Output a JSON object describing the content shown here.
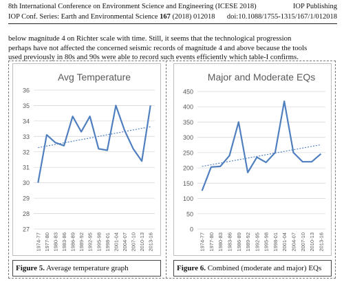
{
  "header": {
    "conference": "8th International Conference on Environment Science and Engineering (ICESE 2018)",
    "publisher": "IOP Publishing",
    "series": "IOP Conf. Series: Earth and Environmental Science",
    "volume": "167",
    "year_article": "(2018) 012018",
    "doi": "doi:10.1088/1755-1315/167/1/012018"
  },
  "paragraph": {
    "line1": "below magnitude 4 on Richter scale with time.  Still, it seems that the technological progression",
    "line2": "perhaps  have not affected the concerned seismic records of magnitude 4 and above because the tools",
    "line3": "used previously in 80s and 90s were able to record such events efficiently which table-I confirms."
  },
  "captions": {
    "fig5_label": "Figure 5.",
    "fig5_text": " Average temperature graph",
    "fig6_label": "Figure 6.",
    "fig6_text": " Combined (moderate and major) EQs"
  },
  "colors": {
    "line": "#4f7fbf",
    "trend": "#4f7fbf",
    "grid": "#d9d9d9",
    "tick_text": "#595959"
  },
  "chart_data": [
    {
      "type": "line",
      "title": "Avg Temperature",
      "categories": [
        "1974-77",
        "1977-80",
        "1980-83",
        "1983-86",
        "1986-89",
        "1989-92",
        "1992-95",
        "1995-98",
        "1998-01",
        "2001-04",
        "2004-07",
        "2007-10",
        "2010-13",
        "2013-16"
      ],
      "values": [
        30.0,
        33.1,
        32.6,
        32.4,
        34.3,
        33.3,
        34.3,
        32.2,
        32.1,
        35.0,
        33.4,
        32.2,
        31.4,
        35.0
      ],
      "trendline": true,
      "yticks": [
        27,
        28,
        29,
        30,
        31,
        32,
        33,
        34,
        35,
        36
      ],
      "ylim": [
        27,
        36
      ],
      "grid": true
    },
    {
      "type": "line",
      "title": "Major and Moderate EQs",
      "categories": [
        "1974-77",
        "1977-80",
        "1980-83",
        "1983-86",
        "1986-89",
        "1989-92",
        "1992-95",
        "1995-98",
        "1998-01",
        "2001-04",
        "2004-07",
        "2007-10",
        "2010-13",
        "2013-16"
      ],
      "values": [
        125,
        203,
        205,
        240,
        350,
        185,
        235,
        218,
        250,
        418,
        250,
        220,
        220,
        246
      ],
      "trendline": true,
      "yticks": [
        0,
        50,
        100,
        150,
        200,
        250,
        300,
        350,
        400,
        450
      ],
      "ylim": [
        0,
        450
      ],
      "grid": true
    }
  ]
}
